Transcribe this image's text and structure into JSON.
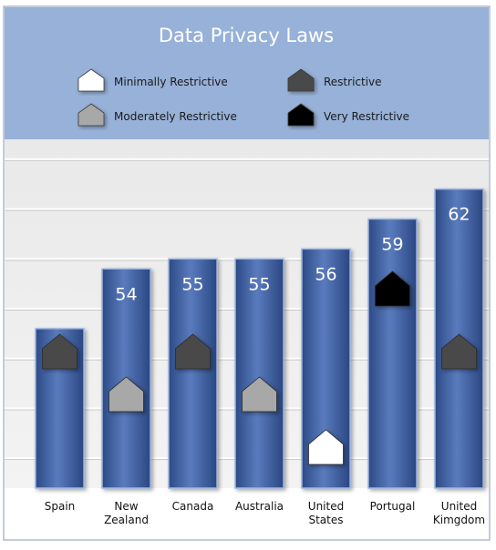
{
  "chart_data": {
    "type": "bar",
    "title": "Data Privacy Laws",
    "categories": [
      {
        "lines": [
          "Spain"
        ]
      },
      {
        "lines": [
          "New",
          "Zealand"
        ]
      },
      {
        "lines": [
          "Canada"
        ]
      },
      {
        "lines": [
          "Australia"
        ]
      },
      {
        "lines": [
          "United",
          "States"
        ]
      },
      {
        "lines": [
          "Portugal"
        ]
      },
      {
        "lines": [
          "United",
          "Kimgdom"
        ]
      }
    ],
    "values": [
      48,
      54,
      55,
      55,
      56,
      59,
      62
    ],
    "restrictiveness": [
      "Restrictive",
      "Moderately Restrictive",
      "Restrictive",
      "Moderately Restrictive",
      "Minimally Restrictive",
      "Very Restrictive",
      "Restrictive"
    ],
    "legend": [
      {
        "label": "Minimally Restrictive",
        "color": "#ffffff"
      },
      {
        "label": "Restrictive",
        "color": "#4a4a4a"
      },
      {
        "label": "Moderately Restrictive",
        "color": "#a8a8a8"
      },
      {
        "label": "Very Restrictive",
        "color": "#000000"
      }
    ],
    "legend_placement": "top",
    "grid": true,
    "colors": {
      "header_bg": "#97b1d8",
      "bar_dark": "#2f4f8c",
      "bar_light": "#6f8fc8",
      "frame_border": "#7f8faa"
    }
  }
}
